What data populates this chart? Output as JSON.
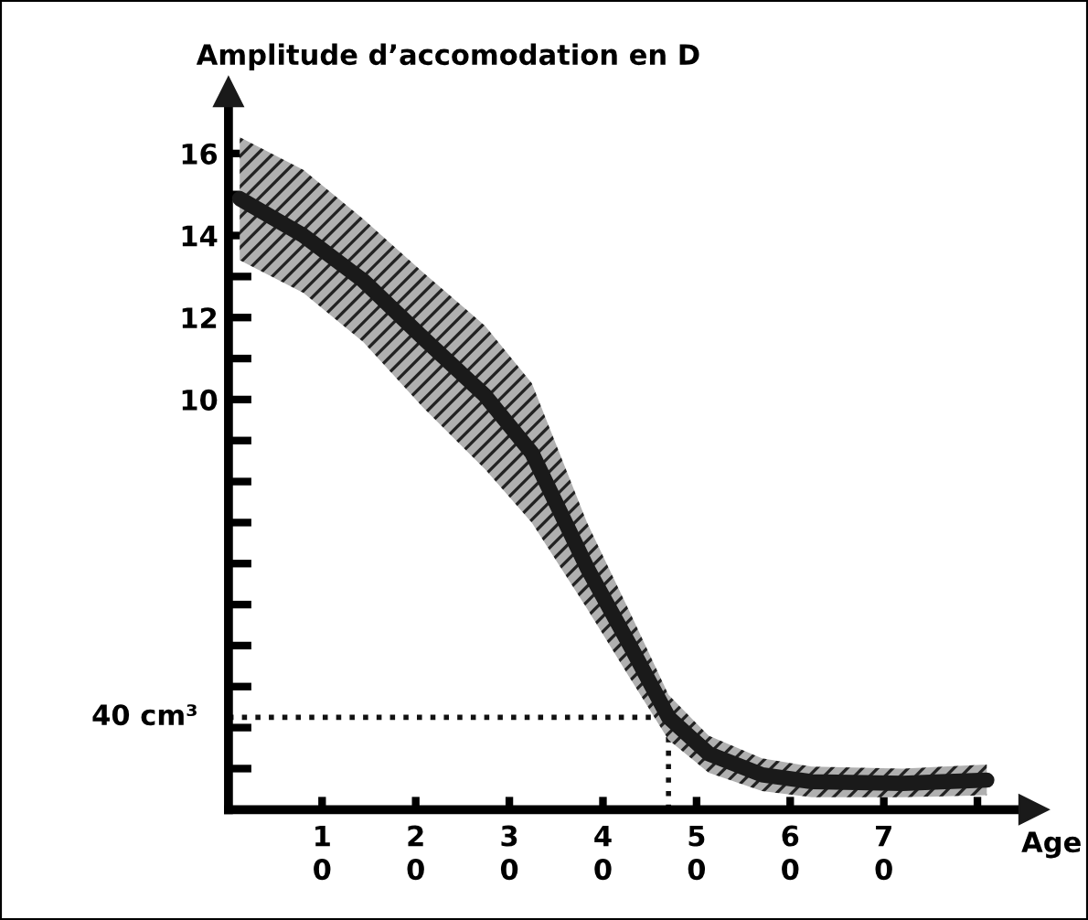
{
  "chart_data": {
    "type": "line",
    "ylabel": "Amplitude d’accomodation en D",
    "xlabel": "Age",
    "x": [
      1.2,
      8,
      14.4,
      20.8,
      27.4,
      32.4,
      38.3,
      42.9,
      47,
      51.3,
      57,
      62.3,
      72,
      81
    ],
    "series": [
      {
        "color": "#1a1a1a",
        "values": [
          14.9,
          14.0,
          12.9,
          11.5,
          10.1,
          8.7,
          5.9,
          4.0,
          2.25,
          1.36,
          0.85,
          0.68,
          0.64,
          0.72
        ],
        "lower": [
          13.4,
          12.6,
          11.4,
          9.8,
          8.3,
          7.0,
          4.9,
          3.2,
          1.7,
          0.9,
          0.45,
          0.3,
          0.3,
          0.35
        ],
        "upper": [
          16.4,
          15.6,
          14.4,
          13.1,
          11.8,
          10.4,
          7.0,
          4.8,
          2.8,
          1.8,
          1.25,
          1.05,
          1.0,
          1.1
        ]
      }
    ],
    "xlim": [
      0,
      86
    ],
    "ylim": [
      0,
      17.5
    ],
    "xticks": [
      10,
      20,
      30,
      40,
      50,
      60,
      70,
      {
        "value": 80,
        "label": null
      }
    ],
    "yticks": [
      {
        "value": 1,
        "label": null
      },
      {
        "value": 2,
        "label": null
      },
      {
        "value": 3,
        "label": null
      },
      {
        "value": 4,
        "label": null
      },
      {
        "value": 5,
        "label": null
      },
      {
        "value": 6,
        "label": null
      },
      {
        "value": 7,
        "label": null
      },
      {
        "value": 8,
        "label": null
      },
      {
        "value": 9,
        "label": null
      },
      10,
      {
        "value": 11,
        "label": null
      },
      12,
      {
        "value": 13,
        "label": null
      },
      14,
      {
        "value": 15,
        "label": null
      },
      16
    ],
    "ref_lines": [
      {
        "axis": "y",
        "value": 2.25,
        "label": "40 cm³",
        "line_style": "dotted"
      },
      {
        "axis": "x",
        "value": 47,
        "line_style": "dotted"
      }
    ],
    "grid": false,
    "legend": false,
    "marker": "none",
    "line_style": "solid"
  }
}
